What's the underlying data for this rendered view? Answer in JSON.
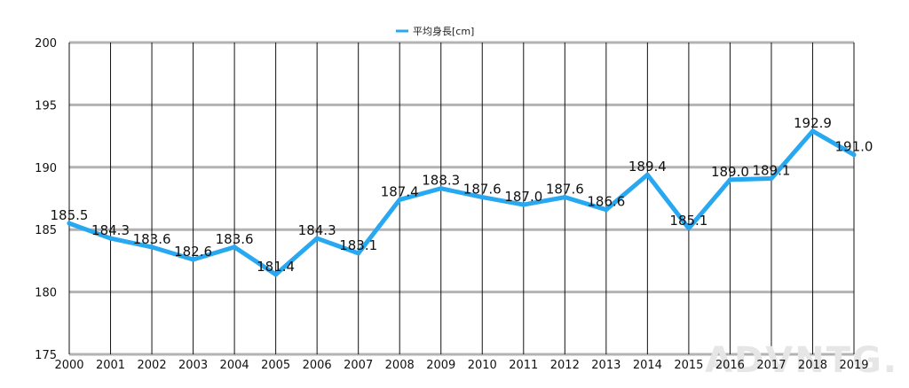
{
  "chart_data": {
    "type": "line",
    "title": "",
    "xlabel": "",
    "ylabel": "",
    "categories": [
      "2000",
      "2001",
      "2002",
      "2003",
      "2004",
      "2005",
      "2006",
      "2007",
      "2008",
      "2009",
      "2010",
      "2011",
      "2012",
      "2013",
      "2014",
      "2015",
      "2016",
      "2017",
      "2018",
      "2019"
    ],
    "series": [
      {
        "name": "平均身長[cm]",
        "color": "#29a8f2",
        "values": [
          185.5,
          184.3,
          183.6,
          182.6,
          183.6,
          181.4,
          184.3,
          183.1,
          187.4,
          188.3,
          187.6,
          187.0,
          187.6,
          186.6,
          189.4,
          185.1,
          189.0,
          189.1,
          192.9,
          191.0
        ],
        "labels": [
          "185.5",
          "184.3",
          "183.6",
          "182.6",
          "183.6",
          "181.4",
          "184.3",
          "183.1",
          "187.4",
          "188.3",
          "187.6",
          "187.0",
          "187.6",
          "186.6",
          "189.4",
          "185.1",
          "189.0",
          "189.1",
          "192.9",
          "191.0"
        ]
      }
    ],
    "ylim": [
      175,
      200
    ],
    "yticks": [
      "175",
      "180",
      "185",
      "190",
      "195",
      "200"
    ],
    "grid": true,
    "legend_position": "top-center"
  },
  "watermark": "ADVNTG."
}
